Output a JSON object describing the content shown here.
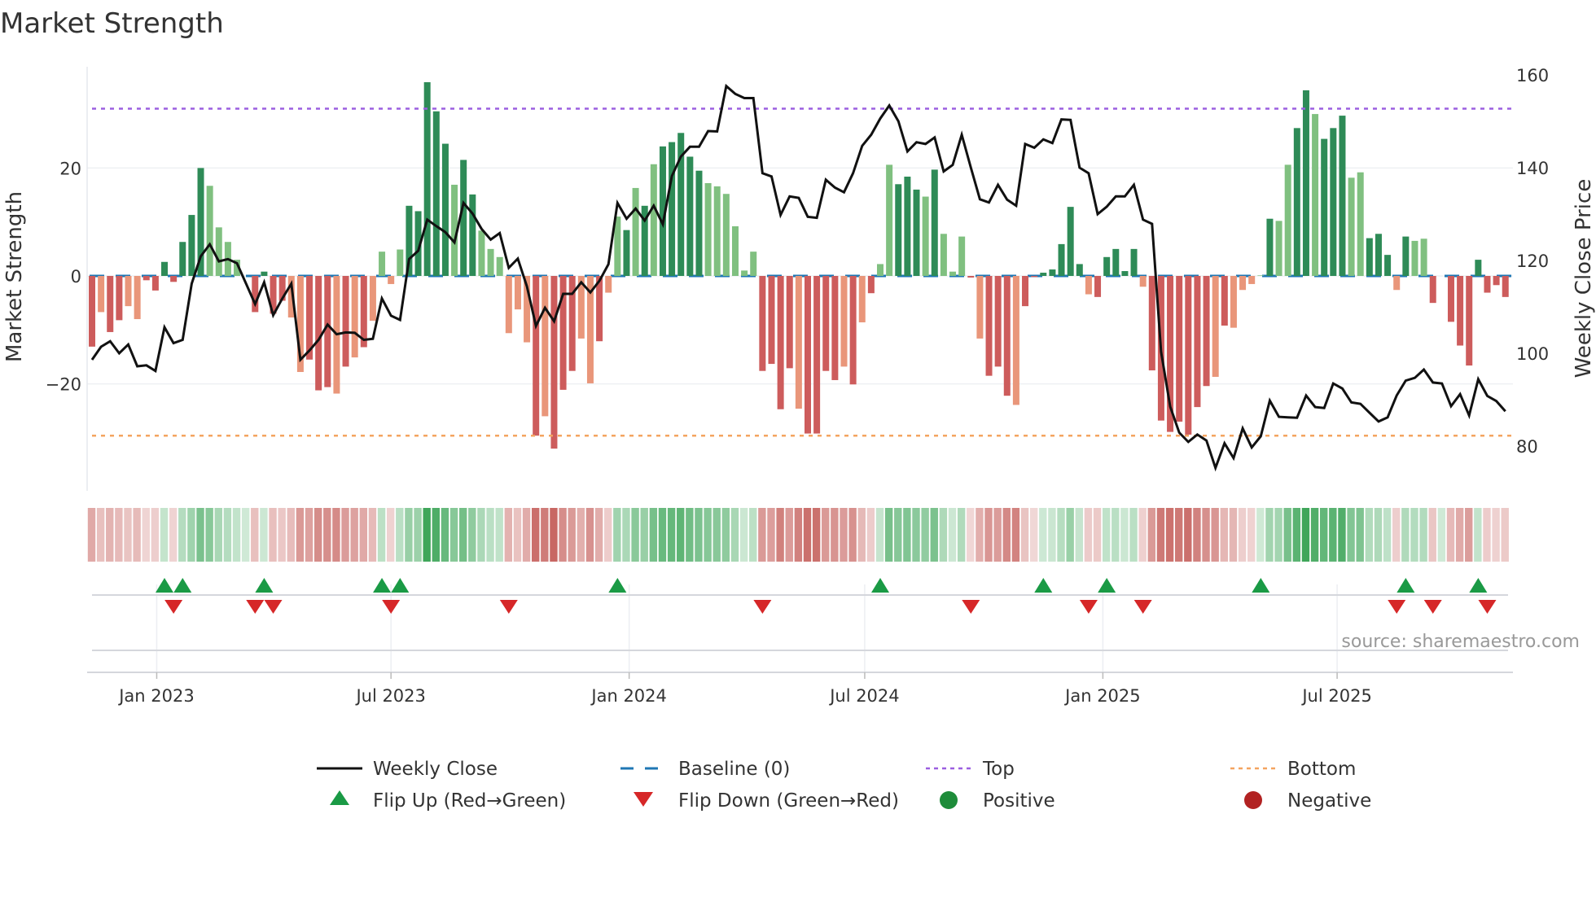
{
  "chart_data": {
    "type": "bar",
    "title": "Market Strength",
    "ylabel": "Market Strength",
    "y2label": "Weekly Close Price",
    "ylim": [
      -39,
      37
    ],
    "y2lim": [
      70,
      162
    ],
    "yticks": [
      20,
      0,
      -20
    ],
    "ytick_labels": [
      "20",
      "0",
      "−20"
    ],
    "y2ticks": [
      160,
      140,
      120,
      100,
      80
    ],
    "y2tick_labels": [
      "160",
      "140",
      "120",
      "100",
      "80"
    ],
    "x_start_date": "2022-11-12",
    "x_frequency_days": 7,
    "xticks": [
      {
        "date": "2023-01-01",
        "label": "Jan 2023"
      },
      {
        "date": "2023-07-01",
        "label": "Jul 2023"
      },
      {
        "date": "2024-01-01",
        "label": "Jan 2024"
      },
      {
        "date": "2024-07-01",
        "label": "Jul 2024"
      },
      {
        "date": "2025-01-01",
        "label": "Jan 2025"
      },
      {
        "date": "2025-07-01",
        "label": "Jul 2025"
      }
    ],
    "top_level": 31,
    "bottom_level": -29.6,
    "baseline": 0,
    "strength": [
      -13.1,
      -6.7,
      -10.4,
      -8.2,
      -5.6,
      -8,
      -0.8,
      -2.7,
      2.6,
      -1.1,
      6.3,
      11.3,
      20,
      16.7,
      9,
      6.3,
      3,
      0,
      -6.7,
      0.8,
      -7,
      -4.6,
      -7.7,
      -17.8,
      -15.5,
      -21.2,
      -20.6,
      -21.8,
      -16.8,
      -15.1,
      -13.2,
      -8.3,
      4.5,
      -1.5,
      4.9,
      13,
      12,
      35.9,
      30.5,
      24.5,
      16.9,
      21.5,
      15.1,
      8.4,
      5,
      3.5,
      -10.6,
      -6.2,
      -12.3,
      -29.6,
      -26,
      -32,
      -21.1,
      -17.6,
      -11.6,
      -19.9,
      -12.1,
      -3.1,
      11,
      8.5,
      16.3,
      13,
      20.7,
      24,
      24.8,
      26.5,
      22.1,
      19.5,
      17.2,
      16.6,
      15.2,
      9.2,
      1,
      4.5,
      -17.6,
      -16.3,
      -24.7,
      -17.1,
      -24.6,
      -29.2,
      -29.2,
      -17.6,
      -19.3,
      -16.8,
      -20.1,
      -8.6,
      -3.2,
      2.2,
      20.6,
      17,
      18.4,
      16,
      14.7,
      19.7,
      7.8,
      0.8,
      7.3,
      -0.3,
      -11.6,
      -18.5,
      -16.8,
      -22.2,
      -23.9,
      -5.6,
      -0.2,
      0.6,
      1.2,
      5.9,
      12.8,
      2.2,
      -3.4,
      -3.9,
      3.5,
      5,
      0.9,
      5,
      -2,
      -17.5,
      -26.8,
      -28.9,
      -27,
      -29.4,
      -24.3,
      -20.4,
      -18.7,
      -9.2,
      -9.6,
      -2.6,
      -1.5,
      0.1,
      10.6,
      10.2,
      20.6,
      27.4,
      34.4,
      30,
      25.4,
      27.4,
      29.7,
      18.2,
      19.2,
      7,
      7.8,
      3.9,
      -2.6,
      7.3,
      6.5,
      6.9,
      -5,
      0,
      -8.5,
      -12.9,
      -16.6,
      3,
      -3.1,
      -1.7,
      -3.9
    ],
    "shade": "dlddlldddddddlllllddddlldddldldlllldddddlddlllllldldddlldlldldldddddllllllddddlddddldldlldddldllldldddldddddddldddddldddddddldlllldllddldddlldddldllddddddddddddddldl",
    "close": [
      98.6,
      101.4,
      102.6,
      100,
      101.9,
      97.2,
      97.4,
      96.2,
      105.6,
      102.2,
      102.9,
      115,
      120.9,
      123.5,
      119.8,
      120.3,
      119.4,
      115,
      110.6,
      115.3,
      108.2,
      111.8,
      115,
      98.6,
      100.6,
      102.9,
      106.2,
      104.1,
      104.5,
      104.4,
      102.9,
      103.1,
      111.8,
      108.1,
      107.2,
      120.3,
      122.1,
      128.8,
      127.4,
      126.1,
      123.9,
      132.4,
      130.1,
      126.8,
      124.5,
      125.9,
      118.4,
      120.4,
      114.4,
      105.9,
      109.8,
      106.9,
      112.8,
      112.8,
      115.3,
      113.1,
      115.6,
      119.2,
      132.4,
      129,
      131.2,
      128.6,
      131.8,
      127.8,
      138.2,
      142.4,
      144.5,
      144.5,
      147.9,
      147.8,
      157.6,
      155.9,
      155,
      155,
      138.8,
      138.1,
      129.8,
      133.8,
      133.5,
      129.4,
      129.2,
      137.4,
      135.7,
      134.7,
      138.8,
      144.7,
      147.1,
      150.6,
      153.4,
      150,
      143.5,
      145.5,
      145.1,
      146.5,
      139.2,
      140.6,
      147.1,
      140,
      133.2,
      132.5,
      136.3,
      133.1,
      131.8,
      145.1,
      144.3,
      146.1,
      145.3,
      150.4,
      150.3,
      140,
      138.8,
      130,
      131.6,
      133.8,
      133.8,
      136.3,
      128.8,
      127.9,
      100.3,
      88.5,
      82.9,
      80.9,
      82.5,
      81.2,
      75.3,
      80.6,
      77.4,
      83.8,
      79.7,
      82.1,
      89.8,
      86.3,
      86.2,
      86.1,
      90.9,
      88.4,
      88.2,
      93.5,
      92.4,
      89.4,
      89.1,
      87.2,
      85.3,
      86.2,
      90.9,
      94.1,
      94.7,
      96.5,
      93.7,
      93.5,
      88.6,
      91.2,
      86.6,
      94.4,
      90.8,
      89.7,
      87.5
    ],
    "flip_up_weeks": [
      9,
      11,
      20,
      33,
      35,
      59,
      88,
      106,
      113,
      130,
      146,
      154
    ],
    "flip_down_weeks": [
      10,
      19,
      21,
      34,
      47,
      75,
      98,
      111,
      117,
      145,
      149,
      155
    ],
    "legend": [
      {
        "label": "Weekly Close",
        "icon": "line"
      },
      {
        "label": "Baseline (0)",
        "icon": "dashed-line"
      },
      {
        "label": "Top",
        "icon": "dotted-line"
      },
      {
        "label": "Bottom",
        "icon": "dotted-line"
      },
      {
        "label": "Flip Up (Red→Green)",
        "icon": "triangle-up"
      },
      {
        "label": "Flip Down (Green→Red)",
        "icon": "triangle-down"
      },
      {
        "label": "Positive",
        "icon": "circle"
      },
      {
        "label": "Negative",
        "icon": "circle"
      }
    ],
    "legend_placement": "bottom",
    "source": "source: sharemaestro.com",
    "colors": {
      "pos_dark": "#2e8b57",
      "pos_light": "#80c080",
      "neg_dark": "#cd5c5c",
      "neg_light": "#e9967a",
      "close": "#111111",
      "baseline": "#1f77b4",
      "top": "#9b5fe0",
      "bottom": "#f4a460",
      "flip_up": "#1a9a45",
      "flip_down": "#d62728",
      "positive": "#1e8c3a",
      "negative": "#b22222"
    }
  }
}
